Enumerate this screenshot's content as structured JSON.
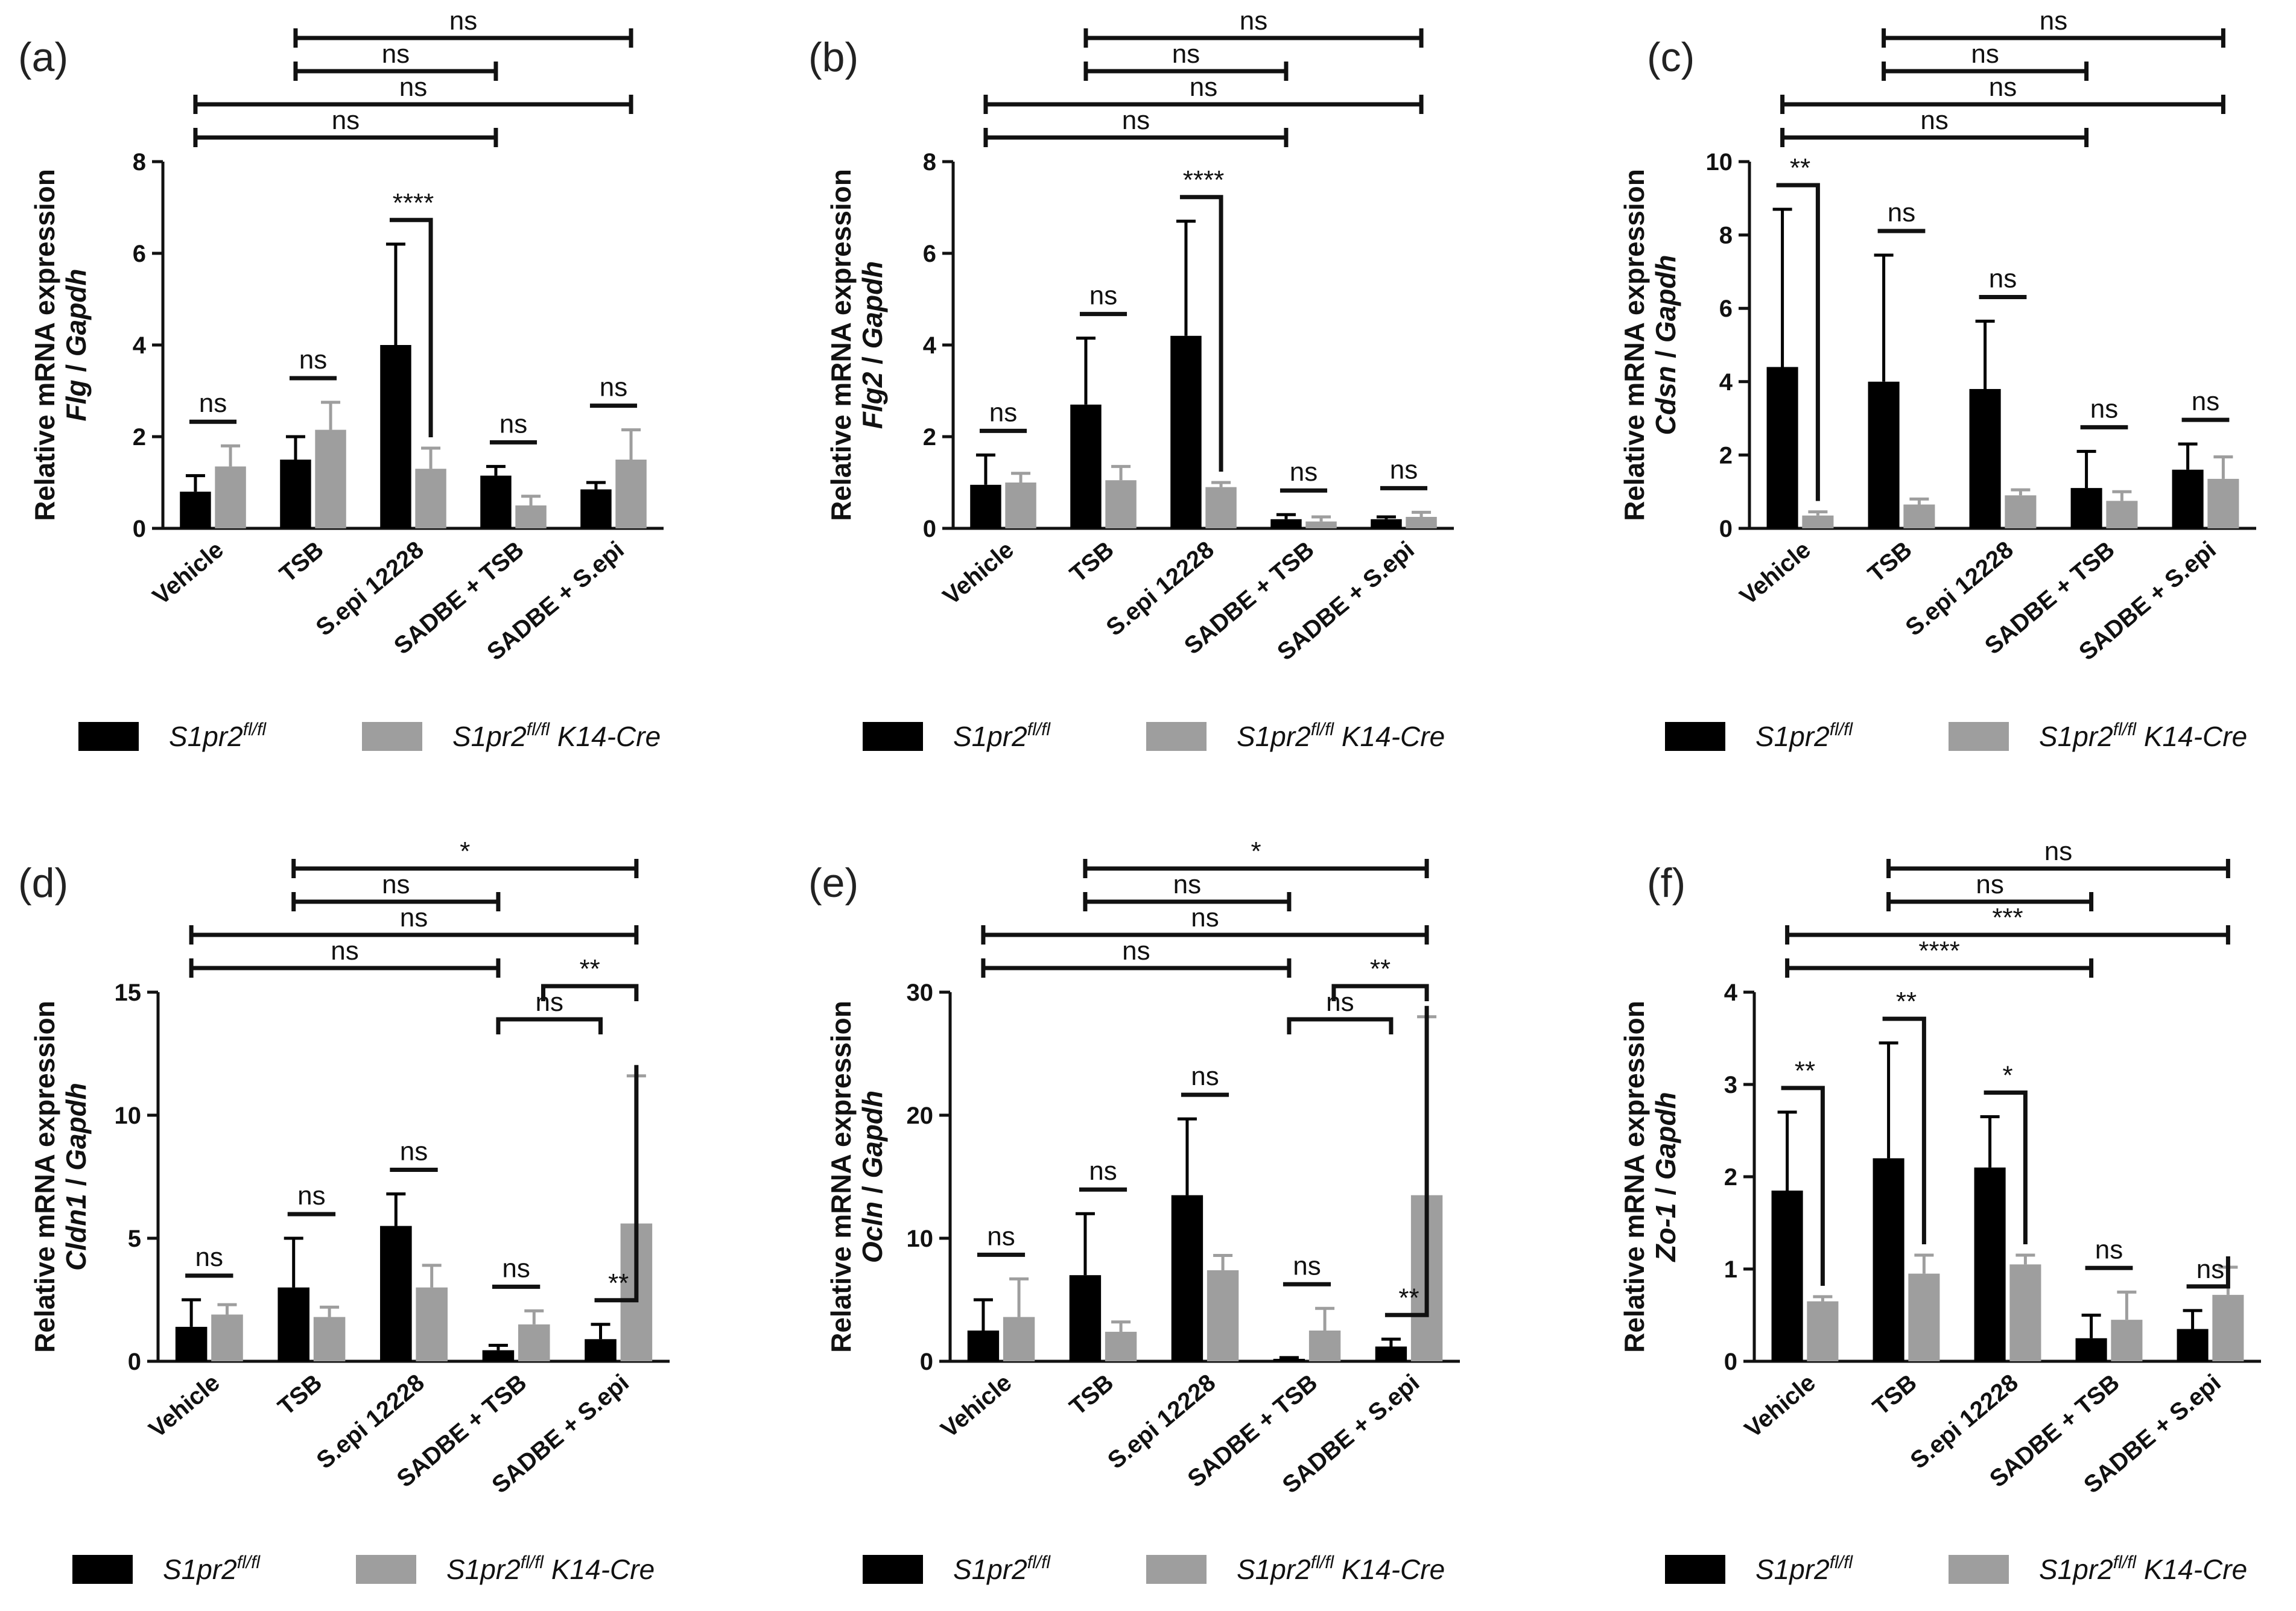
{
  "legend": {
    "series_a": "S1pr2",
    "series_a_sup": "fl/fl",
    "series_b": "S1pr2",
    "series_b_sup": "fl/fl",
    "series_b_suffix": " K14-Cre",
    "colors": {
      "series_a": "#000000",
      "series_b": "#9e9e9e"
    }
  },
  "chart_data": [
    {
      "type": "bar",
      "panel": "(a)",
      "ylabel_line1": "Relative mRNA expression",
      "ylabel_gene": "Flg",
      "ylabel_ref": "Gapdh",
      "ylim": [
        0,
        8
      ],
      "yticks": [
        0,
        2,
        4,
        6,
        8
      ],
      "categories": [
        "Vehicle",
        "TSB",
        "S.epi 12228",
        "SADBE + TSB",
        "SADBE + S.epi"
      ],
      "series": [
        {
          "name": "S1pr2 fl/fl",
          "values": [
            0.8,
            1.5,
            4.0,
            1.15,
            0.85
          ],
          "errors": [
            0.35,
            0.5,
            2.2,
            0.2,
            0.15
          ]
        },
        {
          "name": "S1pr2 fl/fl K14-Cre",
          "values": [
            1.35,
            2.15,
            1.3,
            0.5,
            1.5
          ],
          "errors": [
            0.45,
            0.6,
            0.45,
            0.2,
            0.65
          ]
        }
      ],
      "within_sig": [
        "ns",
        "ns",
        "****",
        "ns",
        "ns"
      ],
      "between_sig": [
        {
          "from": 0,
          "to": 3,
          "label": "ns"
        },
        {
          "from": 0,
          "to": 4,
          "label": "ns"
        },
        {
          "from": 1,
          "to": 3,
          "label": "ns"
        },
        {
          "from": 1,
          "to": 4,
          "label": "ns"
        }
      ]
    },
    {
      "type": "bar",
      "panel": "(b)",
      "ylabel_line1": "Relative mRNA expression",
      "ylabel_gene": "Flg2",
      "ylabel_ref": "Gapdh",
      "ylim": [
        0,
        8
      ],
      "yticks": [
        0,
        2,
        4,
        6,
        8
      ],
      "categories": [
        "Vehicle",
        "TSB",
        "S.epi 12228",
        "SADBE + TSB",
        "SADBE + S.epi"
      ],
      "series": [
        {
          "name": "S1pr2 fl/fl",
          "values": [
            0.95,
            2.7,
            4.2,
            0.2,
            0.2
          ],
          "errors": [
            0.65,
            1.45,
            2.5,
            0.1,
            0.05
          ]
        },
        {
          "name": "S1pr2 fl/fl K14-Cre",
          "values": [
            1.0,
            1.05,
            0.9,
            0.15,
            0.25
          ],
          "errors": [
            0.2,
            0.3,
            0.1,
            0.1,
            0.1
          ]
        }
      ],
      "within_sig": [
        "ns",
        "ns",
        "****",
        "ns",
        "ns"
      ],
      "between_sig": [
        {
          "from": 0,
          "to": 3,
          "label": "ns"
        },
        {
          "from": 0,
          "to": 4,
          "label": "ns"
        },
        {
          "from": 1,
          "to": 3,
          "label": "ns"
        },
        {
          "from": 1,
          "to": 4,
          "label": "ns"
        }
      ]
    },
    {
      "type": "bar",
      "panel": "(c)",
      "ylabel_line1": "Relative mRNA expression",
      "ylabel_gene": "Cdsn",
      "ylabel_ref": "Gapdh",
      "ylim": [
        0,
        10
      ],
      "yticks": [
        0,
        2,
        4,
        6,
        8,
        10
      ],
      "categories": [
        "Vehicle",
        "TSB",
        "S.epi 12228",
        "SADBE + TSB",
        "SADBE + S.epi"
      ],
      "series": [
        {
          "name": "S1pr2 fl/fl",
          "values": [
            4.4,
            4.0,
            3.8,
            1.1,
            1.6
          ],
          "errors": [
            4.3,
            3.45,
            1.85,
            1.0,
            0.7
          ]
        },
        {
          "name": "S1pr2 fl/fl K14-Cre",
          "values": [
            0.35,
            0.65,
            0.9,
            0.75,
            1.35
          ],
          "errors": [
            0.1,
            0.15,
            0.15,
            0.25,
            0.6
          ]
        }
      ],
      "within_sig": [
        "**",
        "ns",
        "ns",
        "ns",
        "ns"
      ],
      "between_sig": [
        {
          "from": 0,
          "to": 3,
          "label": "ns"
        },
        {
          "from": 0,
          "to": 4,
          "label": "ns"
        },
        {
          "from": 1,
          "to": 3,
          "label": "ns"
        },
        {
          "from": 1,
          "to": 4,
          "label": "ns"
        }
      ]
    },
    {
      "type": "bar",
      "panel": "(d)",
      "ylabel_line1": "Relative mRNA expression",
      "ylabel_gene": "Cldn1",
      "ylabel_ref": "Gapdh",
      "ylim": [
        0,
        15
      ],
      "yticks": [
        0,
        5,
        10,
        15
      ],
      "categories": [
        "Vehicle",
        "TSB",
        "S.epi 12228",
        "SADBE + TSB",
        "SADBE + S.epi"
      ],
      "series": [
        {
          "name": "S1pr2 fl/fl",
          "values": [
            1.4,
            3.0,
            5.5,
            0.45,
            0.9
          ],
          "errors": [
            1.1,
            2.0,
            1.3,
            0.2,
            0.6
          ]
        },
        {
          "name": "S1pr2 fl/fl K14-Cre",
          "values": [
            1.9,
            1.8,
            3.0,
            1.5,
            5.6
          ],
          "errors": [
            0.4,
            0.4,
            0.9,
            0.55,
            6.0
          ]
        }
      ],
      "within_sig": [
        "ns",
        "ns",
        "ns",
        "ns",
        "**"
      ],
      "between_sig": [
        {
          "from": 0,
          "to": 3,
          "label": "ns"
        },
        {
          "from": 0,
          "to": 4,
          "label": "ns"
        },
        {
          "from": 1,
          "to": 3,
          "label": "ns"
        },
        {
          "from": 1,
          "to": 4,
          "label": "*"
        },
        {
          "from": 3,
          "to": 4,
          "label": "ns"
        },
        {
          "from": 3,
          "to": 4,
          "label": "**",
          "second_series": true
        }
      ]
    },
    {
      "type": "bar",
      "panel": "(e)",
      "ylabel_line1": "Relative mRNA expression",
      "ylabel_gene": "Ocln",
      "ylabel_ref": "Gapdh",
      "ylim": [
        0,
        30
      ],
      "yticks": [
        0,
        10,
        20,
        30
      ],
      "categories": [
        "Vehicle",
        "TSB",
        "S.epi 12228",
        "SADBE + TSB",
        "SADBE + S.epi"
      ],
      "series": [
        {
          "name": "S1pr2 fl/fl",
          "values": [
            2.5,
            7.0,
            13.5,
            0.2,
            1.2
          ],
          "errors": [
            2.5,
            5.0,
            6.2,
            0.1,
            0.6
          ]
        },
        {
          "name": "S1pr2 fl/fl K14-Cre",
          "values": [
            3.6,
            2.4,
            7.4,
            2.5,
            13.5
          ],
          "errors": [
            3.1,
            0.8,
            1.2,
            1.8,
            14.5
          ]
        }
      ],
      "within_sig": [
        "ns",
        "ns",
        "ns",
        "ns",
        "**"
      ],
      "between_sig": [
        {
          "from": 0,
          "to": 3,
          "label": "ns"
        },
        {
          "from": 0,
          "to": 4,
          "label": "ns"
        },
        {
          "from": 1,
          "to": 3,
          "label": "ns"
        },
        {
          "from": 1,
          "to": 4,
          "label": "*"
        },
        {
          "from": 3,
          "to": 4,
          "label": "ns"
        },
        {
          "from": 3,
          "to": 4,
          "label": "**",
          "second_series": true
        }
      ]
    },
    {
      "type": "bar",
      "panel": "(f)",
      "ylabel_line1": "Relative mRNA expression",
      "ylabel_gene": "Zo-1",
      "ylabel_ref": "Gapdh",
      "ylim": [
        0,
        4
      ],
      "yticks": [
        0,
        1,
        2,
        3,
        4
      ],
      "categories": [
        "Vehicle",
        "TSB",
        "S.epi 12228",
        "SADBE + TSB",
        "SADBE + S.epi"
      ],
      "series": [
        {
          "name": "S1pr2 fl/fl",
          "values": [
            1.85,
            2.2,
            2.1,
            0.25,
            0.35
          ],
          "errors": [
            0.85,
            1.25,
            0.55,
            0.25,
            0.2
          ]
        },
        {
          "name": "S1pr2 fl/fl K14-Cre",
          "values": [
            0.65,
            0.95,
            1.05,
            0.45,
            0.72
          ],
          "errors": [
            0.05,
            0.2,
            0.1,
            0.3,
            0.3
          ]
        }
      ],
      "within_sig": [
        "**",
        "**",
        "*",
        "ns",
        "ns"
      ],
      "between_sig": [
        {
          "from": 0,
          "to": 3,
          "label": "****"
        },
        {
          "from": 0,
          "to": 4,
          "label": "***"
        },
        {
          "from": 1,
          "to": 3,
          "label": "ns"
        },
        {
          "from": 1,
          "to": 4,
          "label": "ns"
        }
      ]
    }
  ]
}
